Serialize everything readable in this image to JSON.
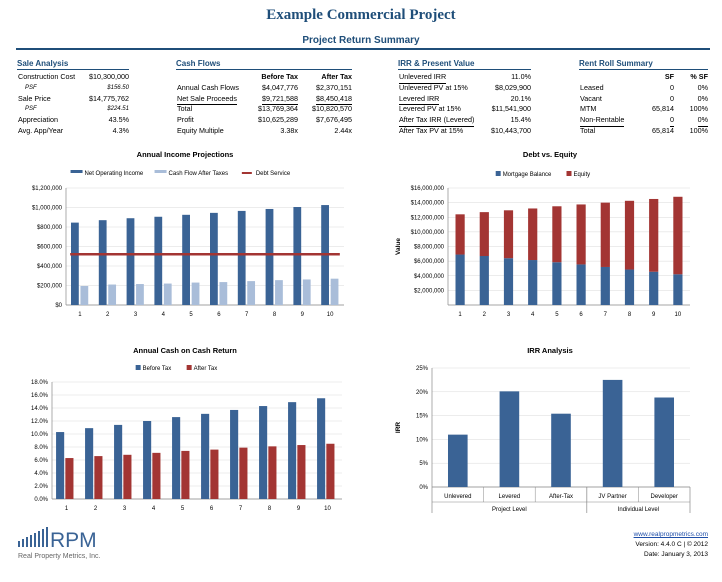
{
  "title": "Example Commercial Project",
  "subtitle": "Project Return Summary",
  "sale_analysis": {
    "header": "Sale Analysis",
    "rows": [
      {
        "label": "Construction Cost",
        "value": "$10,300,000"
      },
      {
        "label": "PSF",
        "value": "$156.50"
      },
      {
        "label": "Sale Price",
        "value": "$14,775,762"
      },
      {
        "label": "PSF",
        "value": "$224.51"
      },
      {
        "label": "Appreciation",
        "value": "43.5%"
      },
      {
        "label": "Avg. App/Year",
        "value": "4.3%"
      }
    ]
  },
  "cash_flows": {
    "header": "Cash Flows",
    "col1": "Before Tax",
    "col2": "After Tax",
    "rows": [
      {
        "label": "Annual Cash Flows",
        "bt": "$4,047,776",
        "at": "$2,370,151"
      },
      {
        "label": "Net Sale Proceeds",
        "bt": "$9,721,588",
        "at": "$8,450,418"
      },
      {
        "label": "Total",
        "bt": "$13,769,364",
        "at": "$10,820,570"
      },
      {
        "label": "Profit",
        "bt": "$10,625,289",
        "at": "$7,676,495"
      },
      {
        "label": "Equity Multiple",
        "bt": "3.38x",
        "at": "2.44x"
      }
    ]
  },
  "irr": {
    "header": "IRR & Present Value",
    "rows": [
      {
        "label": "Unlevered IRR",
        "value": "11.0%"
      },
      {
        "label": "Unlevered PV at 15%",
        "value": "$8,029,900"
      },
      {
        "label": "Levered IRR",
        "value": "20.1%"
      },
      {
        "label": "Levered PV at 15%",
        "value": "$11,541,900"
      },
      {
        "label": "After Tax IRR (Levered)",
        "value": "15.4%"
      },
      {
        "label": "After Tax PV at 15%",
        "value": "$10,443,700"
      }
    ]
  },
  "rent_roll": {
    "header": "Rent Roll Summary",
    "col1": "SF",
    "col2": "% SF",
    "rows": [
      {
        "label": "Leased",
        "sf": "0",
        "pct": "0%"
      },
      {
        "label": "Vacant",
        "sf": "0",
        "pct": "0%"
      },
      {
        "label": "MTM",
        "sf": "65,814",
        "pct": "100%"
      },
      {
        "label": "Non-Rentable",
        "sf": "0",
        "pct": "0%"
      },
      {
        "label": "Total",
        "sf": "65,814",
        "pct": "100%"
      }
    ]
  },
  "colors": {
    "blue": "#3a6395",
    "lightblue": "#a9bdd9",
    "red": "#a33533",
    "navy": "#1f4e79"
  },
  "charts": {
    "income": {
      "chart_data": {
        "type": "bar",
        "title": "Annual Income Projections",
        "categories": [
          "1",
          "2",
          "3",
          "4",
          "5",
          "6",
          "7",
          "8",
          "9",
          "10"
        ],
        "series": [
          {
            "name": "Net Operating Income",
            "values": [
              845000,
              870000,
              890000,
              905000,
              925000,
              945000,
              965000,
              985000,
              1005000,
              1025000
            ]
          },
          {
            "name": "Cash Flow After Taxes",
            "values": [
              195000,
              210000,
              215000,
              220000,
              230000,
              235000,
              245000,
              255000,
              262000,
              270000
            ]
          },
          {
            "name": "Debt Service",
            "values": [
              520000,
              520000,
              520000,
              520000,
              520000,
              520000,
              520000,
              520000,
              520000,
              520000
            ]
          }
        ],
        "yticks": [
          "$0",
          "$200,000",
          "$400,000",
          "$600,000",
          "$800,000",
          "$1,000,000",
          "$1,200,000"
        ],
        "ylim": [
          0,
          1200000
        ]
      }
    },
    "debt": {
      "chart_data": {
        "type": "bar",
        "title": "Debt vs. Equity",
        "ylabel": "Value",
        "categories": [
          "1",
          "2",
          "3",
          "4",
          "5",
          "6",
          "7",
          "8",
          "9",
          "10"
        ],
        "series": [
          {
            "name": "Mortgage Balance",
            "values": [
              6900000,
              6700000,
              6400000,
              6150000,
              5850000,
              5550000,
              5200000,
              4850000,
              4550000,
              4200000
            ]
          },
          {
            "name": "Equity",
            "values": [
              5500000,
              6000000,
              6550000,
              7050000,
              7650000,
              8200000,
              8800000,
              9400000,
              9950000,
              10600000
            ]
          }
        ],
        "yticks": [
          "$2,000,000",
          "$4,000,000",
          "$6,000,000",
          "$8,000,000",
          "$10,000,000",
          "$12,000,000",
          "$14,000,000",
          "$16,000,000"
        ],
        "ylim": [
          0,
          16000000
        ]
      }
    },
    "coc": {
      "chart_data": {
        "type": "bar",
        "title": "Annual Cash on Cash Return",
        "categories": [
          "1",
          "2",
          "3",
          "4",
          "5",
          "6",
          "7",
          "8",
          "9",
          "10"
        ],
        "series": [
          {
            "name": "Before Tax",
            "values": [
              10.3,
              10.9,
              11.4,
              12.0,
              12.6,
              13.1,
              13.7,
              14.3,
              14.9,
              15.5
            ]
          },
          {
            "name": "After Tax",
            "values": [
              6.3,
              6.6,
              6.8,
              7.1,
              7.4,
              7.6,
              7.9,
              8.1,
              8.3,
              8.5
            ]
          }
        ],
        "yticks": [
          "0.0%",
          "2.0%",
          "4.0%",
          "6.0%",
          "8.0%",
          "10.0%",
          "12.0%",
          "14.0%",
          "16.0%",
          "18.0%"
        ],
        "ylim": [
          0,
          18
        ]
      }
    },
    "irr": {
      "chart_data": {
        "type": "bar",
        "title": "IRR Analysis",
        "ylabel": "IRR",
        "categories": [
          "Unlevered",
          "Levered",
          "After-Tax",
          "JV Partner",
          "Developer"
        ],
        "values": [
          11.0,
          20.1,
          15.4,
          22.5,
          18.8
        ],
        "groups": [
          {
            "label": "Project Level",
            "span": 3
          },
          {
            "label": "Individual Level",
            "span": 2
          }
        ],
        "yticks": [
          "0%",
          "5%",
          "10%",
          "15%",
          "20%",
          "25%"
        ],
        "ylim": [
          0,
          25
        ]
      }
    }
  },
  "footer": {
    "url": "www.realpropmetrics.com",
    "version": "Version: 4.4.0 C | © 2012",
    "date": "Date:  January 3, 2013",
    "logo_text": "RPM",
    "logo_sub": "Real Property Metrics, Inc."
  }
}
